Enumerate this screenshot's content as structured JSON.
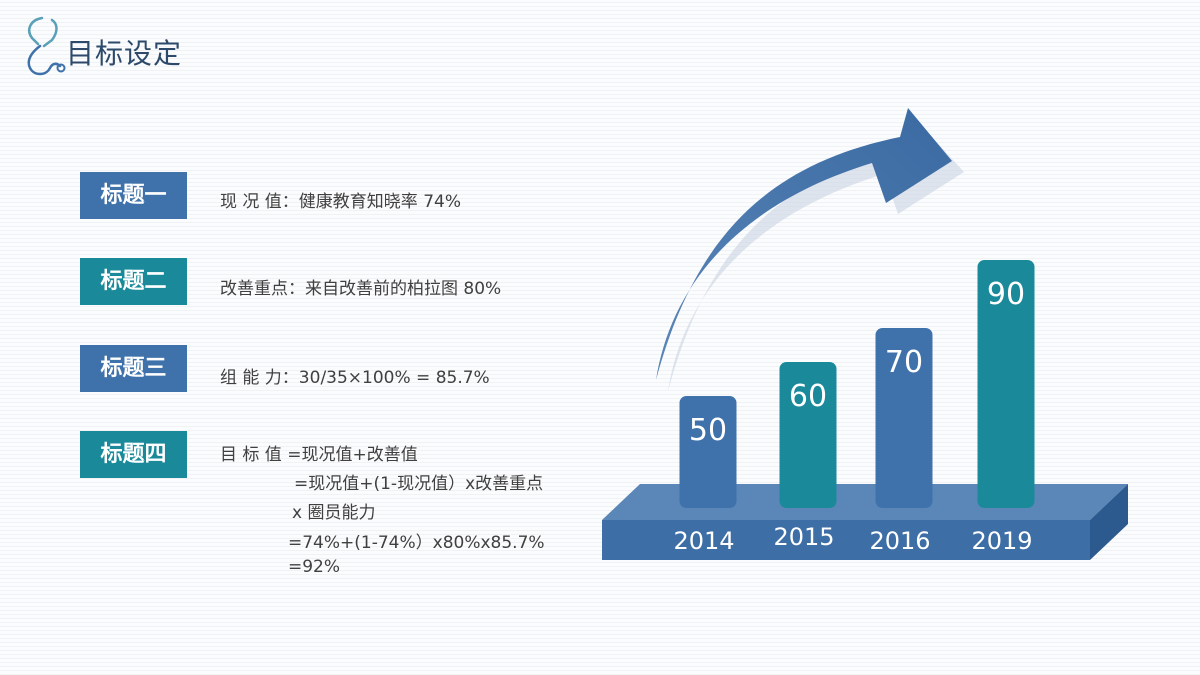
{
  "page": {
    "title": "目标设定"
  },
  "colors": {
    "blue": "#3f72aa",
    "teal": "#1a8a9b",
    "platform_top": "#5a86b8",
    "platform_front": "#3d6ea6",
    "arrow": "#3f72aa",
    "text": "#404040",
    "title": "#2e4a6b"
  },
  "icons": {
    "logo": "stethoscope-icon"
  },
  "items": [
    {
      "tag": "标题一",
      "tag_color": "blue",
      "text": "现 况 值：健康教育知晓率  74%"
    },
    {
      "tag": "标题二",
      "tag_color": "teal",
      "text": "改善重点：来自改善前的柏拉图    80%"
    },
    {
      "tag": "标题三",
      "tag_color": "blue",
      "text": "组  能 力：30/35×100% = 85.7%"
    },
    {
      "tag": "标题四",
      "tag_color": "teal",
      "formula": [
        "目 标 值 =现况值+改善值",
        "=现况值+(1-现况值）x改善重点",
        "x 圈员能力",
        "=74%+(1-74%）x80%x85.7%",
        "=92%"
      ]
    }
  ],
  "chart_data": {
    "type": "bar",
    "categories": [
      "2014",
      "2015",
      "2016",
      "2019"
    ],
    "values": [
      50,
      60,
      70,
      90
    ],
    "bar_colors": [
      "#3f72aa",
      "#1a8a9b",
      "#3f72aa",
      "#1a8a9b"
    ],
    "ylim": [
      0,
      100
    ],
    "title": "",
    "xlabel": "",
    "ylabel": "",
    "grid": false
  }
}
